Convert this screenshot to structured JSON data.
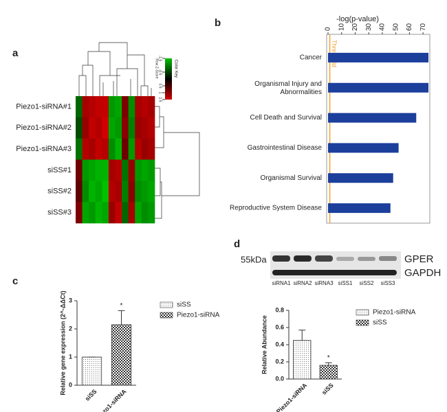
{
  "chart_data": [
    {
      "type": "heatmap",
      "panel": "a",
      "rows": [
        "Piezo1-siRNA#1",
        "Piezo1-siRNA#2",
        "Piezo1-siRNA#3",
        "siSS#1",
        "siSS#2",
        "siSS#3"
      ],
      "values": [
        [
          -0.8,
          1.2,
          1.3,
          1.4,
          1.4,
          -1.2,
          -1.3,
          0.9,
          -1.1,
          1.2,
          1.3,
          1.2
        ],
        [
          -0.6,
          1.1,
          1.4,
          1.3,
          1.5,
          -1.3,
          -1.2,
          1.0,
          -1.0,
          1.1,
          1.2,
          1.3
        ],
        [
          -0.9,
          1.3,
          1.2,
          1.4,
          1.3,
          -1.1,
          -1.4,
          0.8,
          -1.2,
          1.3,
          1.1,
          1.2
        ],
        [
          0.8,
          -1.2,
          -1.3,
          -1.4,
          -1.4,
          1.2,
          1.3,
          -0.9,
          1.1,
          -1.2,
          -1.3,
          -1.2
        ],
        [
          0.7,
          -1.1,
          -1.4,
          -1.3,
          -1.5,
          1.3,
          1.2,
          -1.0,
          1.0,
          -1.1,
          -1.2,
          -1.3
        ],
        [
          0.9,
          -1.3,
          -1.2,
          -1.4,
          -1.3,
          1.1,
          1.4,
          -0.8,
          1.2,
          -1.3,
          -1.1,
          -1.2
        ]
      ],
      "color_range": [
        -1.5,
        1.5
      ],
      "colorbar_ticks": [
        -1.5,
        -0.5,
        0.5,
        1,
        1.5
      ],
      "colorbar_title": "Color Key",
      "colorbar_label": "Row Z-Score",
      "colors": [
        "#00c000",
        "#000000",
        "#d00000"
      ]
    },
    {
      "type": "barh",
      "panel": "b",
      "title": "-log(p-value)",
      "categories": [
        "Cancer",
        "Organismal Injury and Abnormalities",
        "Cell Death and Survival",
        "Gastrointestinal Disease",
        "Organismal Survival",
        "Reproductive System Disease"
      ],
      "values": [
        74,
        74,
        65,
        52,
        48,
        46
      ],
      "color": "#1c3f9c",
      "xlim": [
        0,
        75
      ],
      "xticks": [
        0,
        10,
        20,
        30,
        40,
        50,
        60,
        70
      ],
      "threshold": {
        "value": 1.3,
        "label": "Threshold",
        "color": "#f0a030"
      }
    },
    {
      "type": "bar",
      "panel": "c",
      "ylabel": "Relative gene expression (2^-ΔΔCt)",
      "categories": [
        "siSS",
        "Piezo1-siRNA"
      ],
      "values": [
        1,
        2.15
      ],
      "errors": [
        0,
        0.5
      ],
      "patterns": [
        "dots",
        "checker"
      ],
      "ylim": [
        0,
        3
      ],
      "yticks": [
        0,
        1,
        2,
        3
      ],
      "annotations": [
        {
          "text": "*",
          "category": 1
        }
      ],
      "legend": "right"
    },
    {
      "type": "bar",
      "ylabel": "Relative Abundance",
      "categories": [
        "Piezo1-siRNA",
        "siSS"
      ],
      "values": [
        0.45,
        0.16
      ],
      "errors": [
        0.12,
        0.03
      ],
      "patterns": [
        "dots",
        "checker"
      ],
      "ylim": [
        0,
        0.8
      ],
      "yticks": [
        {
          "value": 0,
          "label": "0.0"
        },
        0.2,
        0.4,
        0.6,
        0.8
      ],
      "annotations": [
        {
          "text": "*",
          "category": 1
        }
      ],
      "legend": "right"
    }
  ],
  "blot": {
    "panel": "d",
    "size_label": "55kDa",
    "bands": [
      "GPER",
      "GAPDH"
    ],
    "lanes": [
      "siRNA1",
      "siRNA2",
      "siRNA3",
      "siSS1",
      "siSS2",
      "siSS3"
    ]
  }
}
